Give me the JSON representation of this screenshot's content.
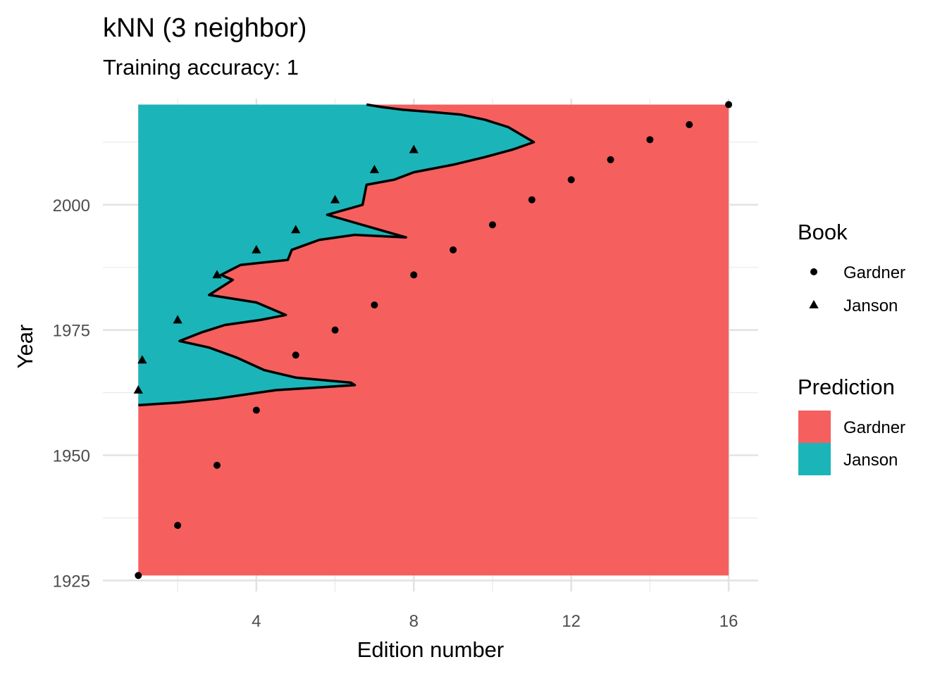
{
  "chart_data": {
    "type": "scatter",
    "title": "kNN (3 neighbor)",
    "subtitle": "Training accuracy: 1",
    "xlabel": "Edition number",
    "ylabel": "Year",
    "xlim": [
      0.1,
      16.75
    ],
    "ylim": [
      1922.8,
      2021.2
    ],
    "x_ticks": [
      4,
      8,
      12,
      16
    ],
    "y_ticks": [
      1925,
      1950,
      1975,
      2000
    ],
    "x_minor": [
      2,
      6,
      10,
      14
    ],
    "y_minor": [
      1937.5,
      1962.5,
      1987.5,
      2012.5
    ],
    "grid": true,
    "region_extent": {
      "x": [
        1,
        16
      ],
      "y": [
        1926,
        2020
      ]
    },
    "colors": {
      "gardner": "#F55F5E",
      "janson": "#1BB5B9",
      "boundary": "#000000",
      "points": "#000000"
    },
    "series": [
      {
        "name": "Gardner",
        "shape": "circle",
        "x": [
          1,
          2,
          3,
          4,
          5,
          6,
          7,
          8,
          9,
          10,
          11,
          12,
          13,
          14,
          15,
          16
        ],
        "y": [
          1926,
          1936,
          1948,
          1959,
          1970,
          1975,
          1980,
          1986,
          1991,
          1996,
          2001,
          2005,
          2009,
          2013,
          2016,
          2020
        ]
      },
      {
        "name": "Janson",
        "shape": "triangle",
        "x": [
          1,
          1.1,
          2,
          3,
          4,
          5,
          6,
          7,
          8
        ],
        "y": [
          1963,
          1969,
          1977,
          1986,
          1991,
          1995,
          2001,
          2007,
          2011
        ]
      }
    ],
    "janson_region_boundary": [
      [
        1,
        2020
      ],
      [
        6.8,
        2020
      ],
      [
        7.2,
        2019.5
      ],
      [
        7.7,
        2019
      ],
      [
        8.5,
        2018.5
      ],
      [
        9.2,
        2018
      ],
      [
        9.8,
        2017
      ],
      [
        10.4,
        2015.5
      ],
      [
        11.05,
        2012.5
      ],
      [
        10.5,
        2011
      ],
      [
        9.8,
        2009.5
      ],
      [
        9.0,
        2008
      ],
      [
        8.0,
        2006.5
      ],
      [
        7.5,
        2005
      ],
      [
        6.8,
        2004
      ],
      [
        6.7,
        2000
      ],
      [
        5.8,
        1998
      ],
      [
        7.8,
        1993.5
      ],
      [
        6.5,
        1994
      ],
      [
        5.6,
        1993
      ],
      [
        4.9,
        1991
      ],
      [
        4.8,
        1989
      ],
      [
        3.6,
        1988
      ],
      [
        3.1,
        1986
      ],
      [
        3.4,
        1985
      ],
      [
        2.8,
        1982
      ],
      [
        4.0,
        1980.5
      ],
      [
        4.75,
        1978
      ],
      [
        4.1,
        1977
      ],
      [
        3.2,
        1976
      ],
      [
        2.6,
        1974.5
      ],
      [
        2.05,
        1972.8
      ],
      [
        2.8,
        1971.5
      ],
      [
        3.5,
        1969.5
      ],
      [
        4.2,
        1967
      ],
      [
        5.0,
        1965.5
      ],
      [
        6.4,
        1964.5
      ],
      [
        6.5,
        1964
      ],
      [
        5.5,
        1963.5
      ],
      [
        4.5,
        1963
      ],
      [
        3.0,
        1961.3
      ],
      [
        2.0,
        1960.5
      ],
      [
        1,
        1960
      ]
    ],
    "legends": [
      {
        "title": "Book",
        "items": [
          {
            "label": "Gardner",
            "shape": "circle"
          },
          {
            "label": "Janson",
            "shape": "triangle"
          }
        ]
      },
      {
        "title": "Prediction",
        "items": [
          {
            "label": "Gardner",
            "color": "#F55F5E"
          },
          {
            "label": "Janson",
            "color": "#1BB5B9"
          }
        ]
      }
    ],
    "legend_position": "right"
  }
}
